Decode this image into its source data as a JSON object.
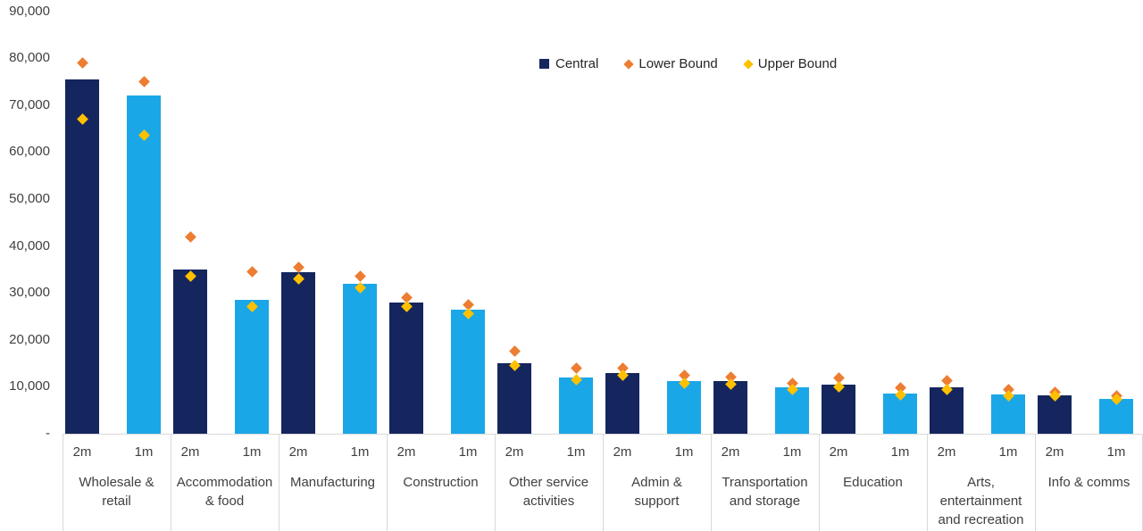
{
  "chart_data": {
    "type": "bar",
    "title": "",
    "xlabel": "",
    "ylabel": "",
    "grid": "off",
    "legend_position": "top-center",
    "legend": [
      {
        "label": "Central",
        "marker": "square",
        "color": "#15265E"
      },
      {
        "label": "Lower Bound",
        "marker": "diamond",
        "color": "#ED7D31"
      },
      {
        "label": "Upper Bound",
        "marker": "diamond",
        "color": "#FFC000"
      }
    ],
    "colors": {
      "bar_2m": "#15265E",
      "bar_1m": "#1AA7E8",
      "lower_bound_marker": "#ED7D31",
      "upper_bound_marker": "#FFC000",
      "axis_line": "#D9D9D9",
      "text": "#404040"
    },
    "y_axis": {
      "min": 0,
      "max": 90000,
      "tick_step": 10000,
      "zero_label": "-",
      "tick_labels_top_to_bottom": [
        "90,000",
        "80,000",
        "70,000",
        "60,000",
        "50,000",
        "40,000",
        "30,000",
        "20,000",
        "10,000",
        "-"
      ]
    },
    "sub_labels": [
      "2m",
      "1m"
    ],
    "groups": [
      {
        "category": "Wholesale & retail",
        "category_lines": [
          "Wholesale &",
          "retail"
        ],
        "bars": [
          {
            "label": "2m",
            "central": 75500,
            "lower_bound": 79000,
            "upper_bound": 67000
          },
          {
            "label": "1m",
            "central": 72000,
            "lower_bound": 75000,
            "upper_bound": 63500
          }
        ]
      },
      {
        "category": "Accommodation & food",
        "category_lines": [
          "Accommodation",
          "& food"
        ],
        "bars": [
          {
            "label": "2m",
            "central": 35000,
            "lower_bound": 42000,
            "upper_bound": 33500
          },
          {
            "label": "1m",
            "central": 28500,
            "lower_bound": 34500,
            "upper_bound": 27000
          }
        ]
      },
      {
        "category": "Manufacturing",
        "category_lines": [
          "Manufacturing"
        ],
        "bars": [
          {
            "label": "2m",
            "central": 34500,
            "lower_bound": 35500,
            "upper_bound": 33000
          },
          {
            "label": "1m",
            "central": 32000,
            "lower_bound": 33500,
            "upper_bound": 31000
          }
        ]
      },
      {
        "category": "Construction",
        "category_lines": [
          "Construction"
        ],
        "bars": [
          {
            "label": "2m",
            "central": 28000,
            "lower_bound": 29000,
            "upper_bound": 27000
          },
          {
            "label": "1m",
            "central": 26500,
            "lower_bound": 27500,
            "upper_bound": 25500
          }
        ]
      },
      {
        "category": "Other service activities",
        "category_lines": [
          "Other service",
          "activities"
        ],
        "bars": [
          {
            "label": "2m",
            "central": 15000,
            "lower_bound": 17500,
            "upper_bound": 14500
          },
          {
            "label": "1m",
            "central": 12000,
            "lower_bound": 14000,
            "upper_bound": 11500
          }
        ]
      },
      {
        "category": "Admin & support",
        "category_lines": [
          "Admin &",
          "support"
        ],
        "bars": [
          {
            "label": "2m",
            "central": 13000,
            "lower_bound": 14000,
            "upper_bound": 12500
          },
          {
            "label": "1m",
            "central": 11200,
            "lower_bound": 12400,
            "upper_bound": 10800
          }
        ]
      },
      {
        "category": "Transportation and storage",
        "category_lines": [
          "Transportation",
          "and storage"
        ],
        "bars": [
          {
            "label": "2m",
            "central": 11200,
            "lower_bound": 12000,
            "upper_bound": 10500
          },
          {
            "label": "1m",
            "central": 9900,
            "lower_bound": 10800,
            "upper_bound": 9400
          }
        ]
      },
      {
        "category": "Education",
        "category_lines": [
          "Education"
        ],
        "bars": [
          {
            "label": "2m",
            "central": 10400,
            "lower_bound": 11800,
            "upper_bound": 9900
          },
          {
            "label": "1m",
            "central": 8500,
            "lower_bound": 9700,
            "upper_bound": 8200
          }
        ]
      },
      {
        "category": "Arts, entertainment and recreation",
        "category_lines": [
          "Arts,",
          "entertainment",
          "and recreation"
        ],
        "bars": [
          {
            "label": "2m",
            "central": 9800,
            "lower_bound": 11300,
            "upper_bound": 9500
          },
          {
            "label": "1m",
            "central": 8300,
            "lower_bound": 9400,
            "upper_bound": 8100
          }
        ]
      },
      {
        "category": "Info & comms",
        "category_lines": [
          "Info & comms"
        ],
        "bars": [
          {
            "label": "2m",
            "central": 8200,
            "lower_bound": 8800,
            "upper_bound": 8100
          },
          {
            "label": "1m",
            "central": 7500,
            "lower_bound": 8000,
            "upper_bound": 7300
          }
        ]
      }
    ]
  }
}
